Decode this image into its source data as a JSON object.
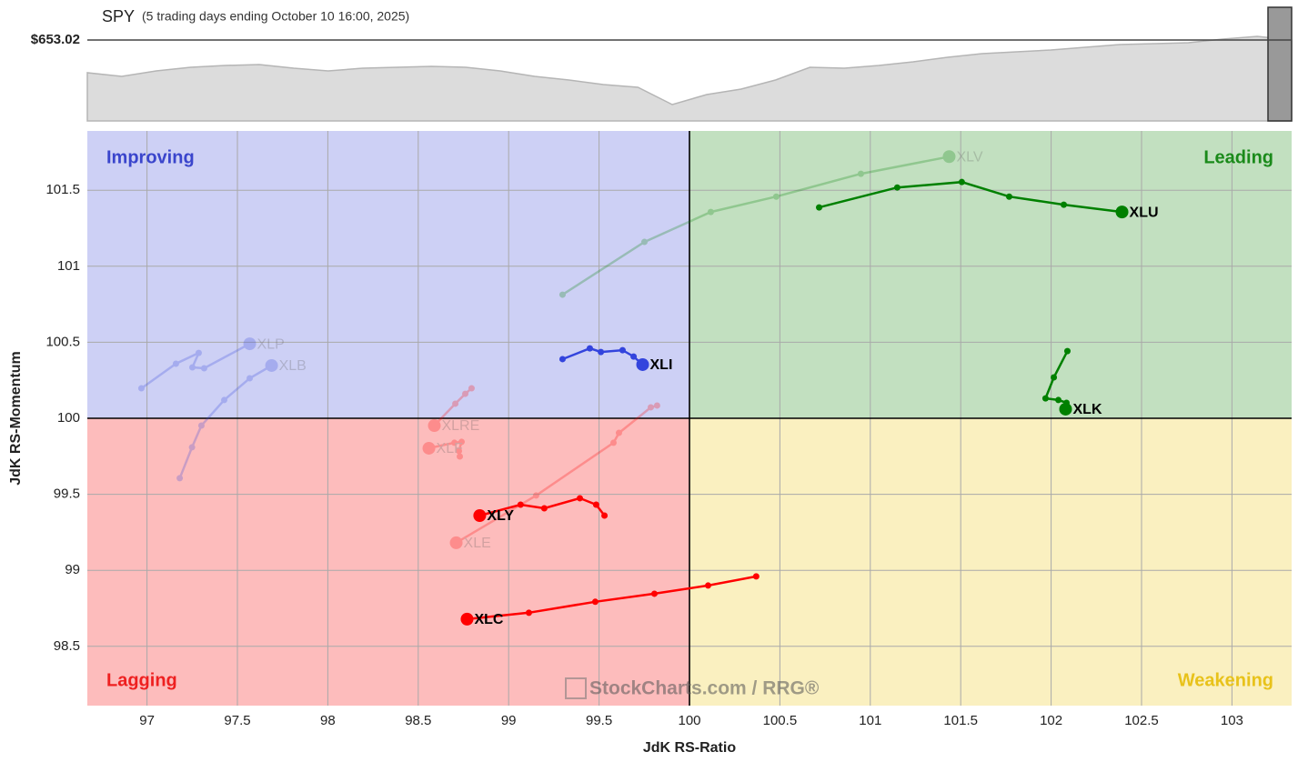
{
  "chart_data": [
    {
      "type": "area",
      "title": "SPY",
      "subtitle": "(5 trading days ending October 10 16:00, 2025)",
      "color": "#dcdcdc",
      "values": [
        591.2,
        584.3,
        594.6,
        601.5,
        604.9,
        606.6,
        599.8,
        594.6,
        599.8,
        601.5,
        603.2,
        601.5,
        594.6,
        584.3,
        577.4,
        568.8,
        563.6,
        531.0,
        549.9,
        560.2,
        577.4,
        601.5,
        599.8,
        604.9,
        611.8,
        620.4,
        627.3,
        630.7,
        634.2,
        639.3,
        644.5,
        646.2,
        647.9,
        654.8,
        660.0,
        653.0
      ],
      "ylim": [
        500,
        715
      ],
      "yticks": [
        {
          "value": 653.02,
          "label": "$653.02"
        }
      ]
    },
    {
      "type": "rrg",
      "x_label": "JdK RS-Ratio",
      "y_label": "JdK RS-Momentum",
      "xlim": [
        96.67,
        103.33
      ],
      "ylim": [
        98.11,
        101.89
      ],
      "xticks": [
        97,
        97.5,
        98,
        98.5,
        99,
        99.5,
        100,
        100.5,
        101,
        101.5,
        102,
        102.5,
        103
      ],
      "yticks": [
        98.5,
        99,
        99.5,
        100,
        100.5,
        101,
        101.5
      ],
      "grid": true,
      "center": {
        "x": 100,
        "y": 100
      },
      "quadrants": [
        {
          "label": "Improving",
          "color": "#cdd0f5",
          "text_color": "#3a45cc"
        },
        {
          "label": "Leading",
          "color": "#c2e0c0",
          "text_color": "#1a8a1a"
        },
        {
          "label": "Lagging",
          "color": "#fdbcbc",
          "text_color": "#ee2020"
        },
        {
          "label": "Weakening",
          "color": "#faf0c0",
          "text_color": "#e8c21a"
        }
      ],
      "watermark": "StockCharts.com / RRG®",
      "series": [
        {
          "name": "XLV",
          "color": "#008000",
          "faded": true,
          "x": [
            99.298,
            99.751,
            100.118,
            100.48,
            100.948,
            101.436
          ],
          "y": [
            100.813,
            101.16,
            101.357,
            101.458,
            101.608,
            101.721
          ]
        },
        {
          "name": "XLP",
          "color": "#3344dd",
          "faded": true,
          "x": [
            96.969,
            97.16,
            97.286,
            97.251,
            97.316,
            97.568
          ],
          "y": [
            100.197,
            100.359,
            100.43,
            100.335,
            100.329,
            100.49
          ]
        },
        {
          "name": "XLB",
          "color": "#3344dd",
          "faded": true,
          "x": [
            97.181,
            97.249,
            97.301,
            97.427,
            97.568,
            97.689
          ],
          "y": [
            99.606,
            99.809,
            99.952,
            100.12,
            100.263,
            100.347
          ]
        },
        {
          "name": "XLRE",
          "color": "#ff0000",
          "faded": true,
          "x": [
            98.795,
            98.76,
            98.705,
            98.589
          ],
          "y": [
            100.197,
            100.161,
            100.096,
            99.952
          ]
        },
        {
          "name": "XLF",
          "color": "#ff0000",
          "faded": true,
          "x": [
            98.73,
            98.725,
            98.74,
            98.7,
            98.559
          ],
          "y": [
            99.749,
            99.785,
            99.845,
            99.839,
            99.803
          ]
        },
        {
          "name": "XLE",
          "color": "#ff0000",
          "faded": true,
          "x": [
            99.821,
            99.786,
            99.61,
            99.58,
            99.152,
            98.71
          ],
          "y": [
            100.084,
            100.072,
            99.904,
            99.839,
            99.492,
            99.181
          ]
        },
        {
          "name": "XLU",
          "color": "#008000",
          "faded": false,
          "x": [
            100.717,
            101.149,
            101.506,
            101.768,
            102.07,
            102.392
          ],
          "y": [
            101.387,
            101.518,
            101.554,
            101.458,
            101.405,
            101.357
          ]
        },
        {
          "name": "XLK",
          "color": "#008000",
          "faded": false,
          "x": [
            102.09,
            102.015,
            101.969,
            102.04,
            102.085,
            102.08
          ],
          "y": [
            100.442,
            100.269,
            100.131,
            100.12,
            100.102,
            100.06
          ]
        },
        {
          "name": "XLI",
          "color": "#3344dd",
          "faded": false,
          "x": [
            99.298,
            99.449,
            99.51,
            99.63,
            99.691,
            99.741
          ],
          "y": [
            100.389,
            100.46,
            100.436,
            100.448,
            100.406,
            100.353
          ]
        },
        {
          "name": "XLY",
          "color": "#ff0000",
          "faded": false,
          "x": [
            99.53,
            99.484,
            99.394,
            99.197,
            99.066,
            98.84
          ],
          "y": [
            99.36,
            99.432,
            99.474,
            99.408,
            99.432,
            99.36
          ]
        },
        {
          "name": "XLC",
          "color": "#ff0000",
          "faded": false,
          "x": [
            100.369,
            100.103,
            99.806,
            99.479,
            99.112,
            98.77
          ],
          "y": [
            98.96,
            98.9,
            98.846,
            98.793,
            98.721,
            98.679
          ]
        }
      ]
    }
  ]
}
